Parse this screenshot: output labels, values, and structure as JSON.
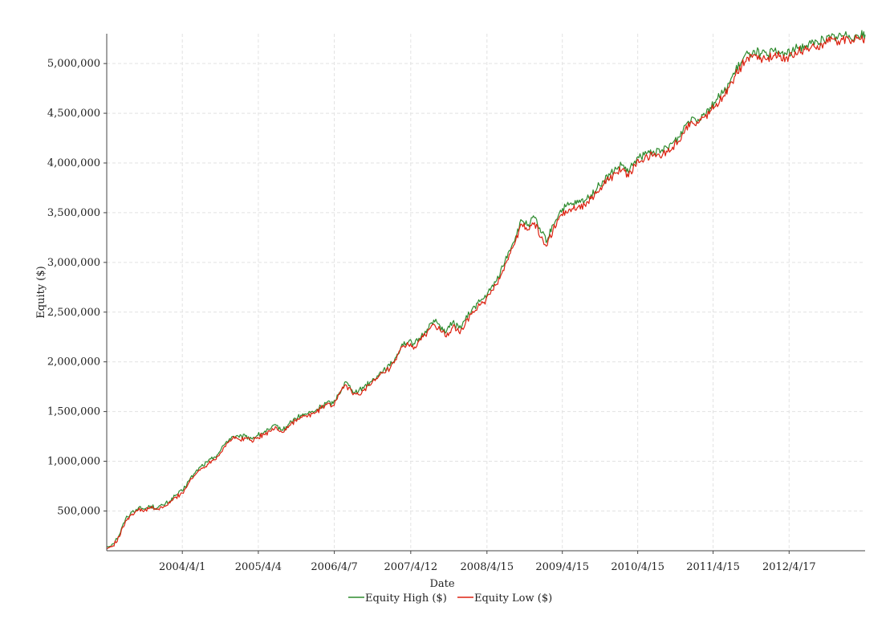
{
  "chart_data": {
    "type": "line",
    "title": "",
    "xlabel": "Date",
    "ylabel": "Equity ($)",
    "ylim": [
      100000,
      5300000
    ],
    "yticks": [
      500000,
      1000000,
      1500000,
      2000000,
      2500000,
      3000000,
      3500000,
      4000000,
      4500000,
      5000000
    ],
    "ytick_labels": [
      "500,000",
      "1,000,000",
      "1,500,000",
      "2,000,000",
      "2,500,000",
      "3,000,000",
      "3,500,000",
      "4,000,000",
      "4,500,000",
      "5,000,000"
    ],
    "xlim": [
      "2003-04-01",
      "2013-04-20"
    ],
    "xticks": [
      "2004-04-01",
      "2005-04-04",
      "2006-04-07",
      "2007-04-12",
      "2008-04-15",
      "2009-04-15",
      "2010-04-15",
      "2011-04-15",
      "2012-04-17"
    ],
    "xtick_labels": [
      "2004/4/1",
      "2005/4/4",
      "2006/4/7",
      "2007/4/12",
      "2008/4/15",
      "2009/4/15",
      "2010/4/15",
      "2011/4/15",
      "2012/4/17"
    ],
    "grid": true,
    "legend": "bottom-center",
    "x": [
      "2003-04-01",
      "2003-05-01",
      "2003-06-01",
      "2003-07-01",
      "2003-08-01",
      "2003-09-01",
      "2003-10-01",
      "2003-11-01",
      "2003-12-01",
      "2004-01-01",
      "2004-02-01",
      "2004-03-01",
      "2004-04-01",
      "2004-05-01",
      "2004-06-01",
      "2004-07-01",
      "2004-08-01",
      "2004-09-01",
      "2004-10-01",
      "2004-11-01",
      "2004-12-01",
      "2005-01-01",
      "2005-02-01",
      "2005-03-01",
      "2005-04-01",
      "2005-05-01",
      "2005-06-01",
      "2005-07-01",
      "2005-08-01",
      "2005-09-01",
      "2005-10-01",
      "2005-11-01",
      "2005-12-01",
      "2006-01-01",
      "2006-02-01",
      "2006-03-01",
      "2006-04-01",
      "2006-05-01",
      "2006-06-01",
      "2006-07-01",
      "2006-08-01",
      "2006-09-01",
      "2006-10-01",
      "2006-11-01",
      "2006-12-01",
      "2007-01-01",
      "2007-02-01",
      "2007-03-01",
      "2007-04-01",
      "2007-05-01",
      "2007-06-01",
      "2007-07-01",
      "2007-08-01",
      "2007-09-01",
      "2007-10-01",
      "2007-11-01",
      "2007-12-01",
      "2008-01-01",
      "2008-02-01",
      "2008-03-01",
      "2008-04-01",
      "2008-05-01",
      "2008-06-01",
      "2008-07-01",
      "2008-08-01",
      "2008-09-01",
      "2008-10-01",
      "2008-11-01",
      "2008-12-01",
      "2009-01-01",
      "2009-02-01",
      "2009-03-01",
      "2009-04-01",
      "2009-05-01",
      "2009-06-01",
      "2009-07-01",
      "2009-08-01",
      "2009-09-01",
      "2009-10-01",
      "2009-11-01",
      "2009-12-01",
      "2010-01-01",
      "2010-02-01",
      "2010-03-01",
      "2010-04-01",
      "2010-05-01",
      "2010-06-01",
      "2010-07-01",
      "2010-08-01",
      "2010-09-01",
      "2010-10-01",
      "2010-11-01",
      "2010-12-01",
      "2011-01-01",
      "2011-02-01",
      "2011-03-01",
      "2011-04-01",
      "2011-05-01",
      "2011-06-01",
      "2011-07-01",
      "2011-08-01",
      "2011-09-01",
      "2011-10-01",
      "2011-11-01",
      "2011-12-01",
      "2012-01-01",
      "2012-02-01",
      "2012-03-01",
      "2012-04-01",
      "2012-05-01",
      "2012-06-01",
      "2012-07-01",
      "2012-08-01",
      "2012-09-01",
      "2012-10-01",
      "2012-11-01",
      "2012-12-01",
      "2013-01-01",
      "2013-02-01",
      "2013-03-01",
      "2013-04-01",
      "2013-04-20"
    ],
    "series": [
      {
        "name": "Equity High ($)",
        "color": "#2e8b2e",
        "values": [
          140000,
          170000,
          260000,
          420000,
          490000,
          530000,
          520000,
          550000,
          530000,
          560000,
          600000,
          660000,
          700000,
          800000,
          880000,
          950000,
          990000,
          1040000,
          1100000,
          1200000,
          1250000,
          1240000,
          1250000,
          1230000,
          1260000,
          1290000,
          1320000,
          1360000,
          1310000,
          1380000,
          1430000,
          1460000,
          1480000,
          1500000,
          1550000,
          1590000,
          1580000,
          1690000,
          1800000,
          1720000,
          1700000,
          1760000,
          1800000,
          1860000,
          1920000,
          1960000,
          2050000,
          2180000,
          2200000,
          2180000,
          2250000,
          2330000,
          2420000,
          2360000,
          2300000,
          2400000,
          2340000,
          2420000,
          2520000,
          2590000,
          2640000,
          2720000,
          2820000,
          2960000,
          3120000,
          3260000,
          3420000,
          3380000,
          3450000,
          3300000,
          3220000,
          3380000,
          3500000,
          3560000,
          3580000,
          3600000,
          3620000,
          3680000,
          3750000,
          3820000,
          3880000,
          3940000,
          3980000,
          3900000,
          4020000,
          4060000,
          4100000,
          4120000,
          4100000,
          4160000,
          4200000,
          4260000,
          4380000,
          4460000,
          4440000,
          4500000,
          4560000,
          4640000,
          4700000,
          4800000,
          4920000,
          5020000,
          5100000,
          5130000,
          5100000,
          5080000,
          5120000,
          5110000,
          5100000,
          5120000,
          5160000,
          5180000,
          5200000,
          5220000,
          5240000,
          5260000,
          5270000,
          5280000,
          5285000,
          5280000,
          5290000,
          5290000
        ]
      },
      {
        "name": "Equity Low ($)",
        "color": "#dd2211",
        "values": [
          120000,
          150000,
          240000,
          400000,
          470000,
          510000,
          505000,
          530000,
          515000,
          540000,
          580000,
          640000,
          680000,
          780000,
          860000,
          930000,
          970000,
          1020000,
          1080000,
          1180000,
          1230000,
          1220000,
          1230000,
          1210000,
          1240000,
          1270000,
          1300000,
          1340000,
          1290000,
          1360000,
          1410000,
          1440000,
          1460000,
          1480000,
          1530000,
          1570000,
          1560000,
          1670000,
          1770000,
          1690000,
          1670000,
          1730000,
          1770000,
          1830000,
          1890000,
          1930000,
          2020000,
          2150000,
          2170000,
          2150000,
          2220000,
          2300000,
          2380000,
          2320000,
          2250000,
          2350000,
          2300000,
          2380000,
          2480000,
          2550000,
          2600000,
          2680000,
          2780000,
          2920000,
          3080000,
          3220000,
          3380000,
          3330000,
          3400000,
          3250000,
          3170000,
          3330000,
          3460000,
          3520000,
          3540000,
          3560000,
          3580000,
          3640000,
          3710000,
          3780000,
          3840000,
          3900000,
          3940000,
          3860000,
          3980000,
          4020000,
          4060000,
          4080000,
          4060000,
          4120000,
          4160000,
          4220000,
          4340000,
          4420000,
          4400000,
          4460000,
          4520000,
          4600000,
          4660000,
          4760000,
          4880000,
          4980000,
          5060000,
          5090000,
          5060000,
          5040000,
          5080000,
          5070000,
          5060000,
          5080000,
          5120000,
          5140000,
          5160000,
          5180000,
          5200000,
          5220000,
          5230000,
          5240000,
          5245000,
          5240000,
          5250000,
          5250000
        ]
      }
    ]
  }
}
